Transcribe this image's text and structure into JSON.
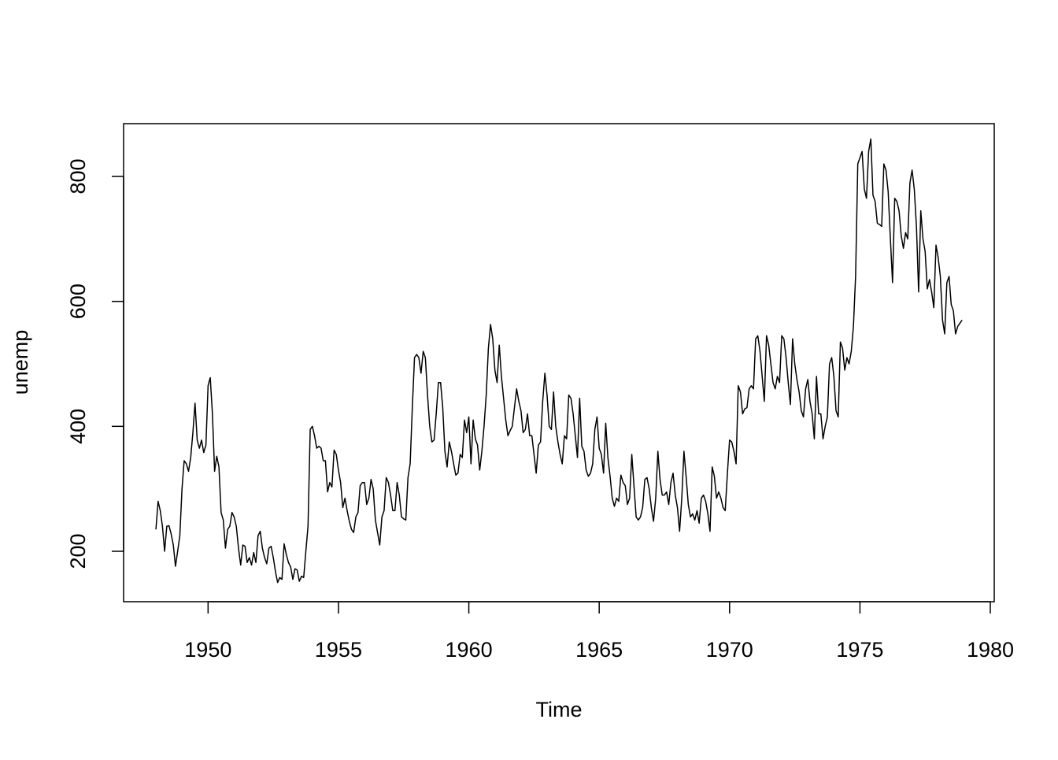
{
  "chart_data": {
    "type": "line",
    "xlabel": "Time",
    "ylabel": "unemp",
    "color": "#000000",
    "x": [
      1948,
      1948.083,
      1948.167,
      1948.25,
      1948.333,
      1948.417,
      1948.5,
      1948.583,
      1948.667,
      1948.75,
      1948.833,
      1948.917,
      1949,
      1949.083,
      1949.167,
      1949.25,
      1949.333,
      1949.417,
      1949.5,
      1949.583,
      1949.667,
      1949.75,
      1949.833,
      1949.917,
      1950,
      1950.083,
      1950.167,
      1950.25,
      1950.333,
      1950.417,
      1950.5,
      1950.583,
      1950.667,
      1950.75,
      1950.833,
      1950.917,
      1951,
      1951.083,
      1951.167,
      1951.25,
      1951.333,
      1951.417,
      1951.5,
      1951.583,
      1951.667,
      1951.75,
      1951.833,
      1951.917,
      1952,
      1952.083,
      1952.167,
      1952.25,
      1952.333,
      1952.417,
      1952.5,
      1952.583,
      1952.667,
      1952.75,
      1952.833,
      1952.917,
      1953,
      1953.083,
      1953.167,
      1953.25,
      1953.333,
      1953.417,
      1953.5,
      1953.583,
      1953.667,
      1953.75,
      1953.833,
      1953.917,
      1954,
      1954.083,
      1954.167,
      1954.25,
      1954.333,
      1954.417,
      1954.5,
      1954.583,
      1954.667,
      1954.75,
      1954.833,
      1954.917,
      1955,
      1955.083,
      1955.167,
      1955.25,
      1955.333,
      1955.417,
      1955.5,
      1955.583,
      1955.667,
      1955.75,
      1955.833,
      1955.917,
      1956,
      1956.083,
      1956.167,
      1956.25,
      1956.333,
      1956.417,
      1956.5,
      1956.583,
      1956.667,
      1956.75,
      1956.833,
      1956.917,
      1957,
      1957.083,
      1957.167,
      1957.25,
      1957.333,
      1957.417,
      1957.5,
      1957.583,
      1957.667,
      1957.75,
      1957.833,
      1957.917,
      1958,
      1958.083,
      1958.167,
      1958.25,
      1958.333,
      1958.417,
      1958.5,
      1958.583,
      1958.667,
      1958.75,
      1958.833,
      1958.917,
      1959,
      1959.083,
      1959.167,
      1959.25,
      1959.333,
      1959.417,
      1959.5,
      1959.583,
      1959.667,
      1959.75,
      1959.833,
      1959.917,
      1960,
      1960.083,
      1960.167,
      1960.25,
      1960.333,
      1960.417,
      1960.5,
      1960.583,
      1960.667,
      1960.75,
      1960.833,
      1960.917,
      1961,
      1961.083,
      1961.167,
      1961.25,
      1961.333,
      1961.417,
      1961.5,
      1961.583,
      1961.667,
      1961.75,
      1961.833,
      1961.917,
      1962,
      1962.083,
      1962.167,
      1962.25,
      1962.333,
      1962.417,
      1962.5,
      1962.583,
      1962.667,
      1962.75,
      1962.833,
      1962.917,
      1963,
      1963.083,
      1963.167,
      1963.25,
      1963.333,
      1963.417,
      1963.5,
      1963.583,
      1963.667,
      1963.75,
      1963.833,
      1963.917,
      1964,
      1964.083,
      1964.167,
      1964.25,
      1964.333,
      1964.417,
      1964.5,
      1964.583,
      1964.667,
      1964.75,
      1964.833,
      1964.917,
      1965,
      1965.083,
      1965.167,
      1965.25,
      1965.333,
      1965.417,
      1965.5,
      1965.583,
      1965.667,
      1965.75,
      1965.833,
      1965.917,
      1966,
      1966.083,
      1966.167,
      1966.25,
      1966.333,
      1966.417,
      1966.5,
      1966.583,
      1966.667,
      1966.75,
      1966.833,
      1966.917,
      1967,
      1967.083,
      1967.167,
      1967.25,
      1967.333,
      1967.417,
      1967.5,
      1967.583,
      1967.667,
      1967.75,
      1967.833,
      1967.917,
      1968,
      1968.083,
      1968.167,
      1968.25,
      1968.333,
      1968.417,
      1968.5,
      1968.583,
      1968.667,
      1968.75,
      1968.833,
      1968.917,
      1969,
      1969.083,
      1969.167,
      1969.25,
      1969.333,
      1969.417,
      1969.5,
      1969.583,
      1969.667,
      1969.75,
      1969.833,
      1969.917,
      1970,
      1970.083,
      1970.167,
      1970.25,
      1970.333,
      1970.417,
      1970.5,
      1970.583,
      1970.667,
      1970.75,
      1970.833,
      1970.917,
      1971,
      1971.083,
      1971.167,
      1971.25,
      1971.333,
      1971.417,
      1971.5,
      1971.583,
      1971.667,
      1971.75,
      1971.833,
      1971.917,
      1972,
      1972.083,
      1972.167,
      1972.25,
      1972.333,
      1972.417,
      1972.5,
      1972.583,
      1972.667,
      1972.75,
      1972.833,
      1972.917,
      1973,
      1973.083,
      1973.167,
      1973.25,
      1973.333,
      1973.417,
      1973.5,
      1973.583,
      1973.667,
      1973.75,
      1973.833,
      1973.917,
      1974,
      1974.083,
      1974.167,
      1974.25,
      1974.333,
      1974.417,
      1974.5,
      1974.583,
      1974.667,
      1974.75,
      1974.833,
      1974.917,
      1975,
      1975.083,
      1975.167,
      1975.25,
      1975.333,
      1975.417,
      1975.5,
      1975.583,
      1975.667,
      1975.75,
      1975.833,
      1975.917,
      1976,
      1976.083,
      1976.167,
      1976.25,
      1976.333,
      1976.417,
      1976.5,
      1976.583,
      1976.667,
      1976.75,
      1976.833,
      1976.917,
      1977,
      1977.083,
      1977.167,
      1977.25,
      1977.333,
      1977.417,
      1977.5,
      1977.583,
      1977.667,
      1977.75,
      1977.833,
      1977.917,
      1978,
      1978.083,
      1978.167,
      1978.25,
      1978.333,
      1978.417,
      1978.5,
      1978.583,
      1978.667,
      1978.75,
      1978.833,
      1978.917
    ],
    "values": [
      235,
      280,
      265,
      240,
      200,
      240,
      241,
      228,
      210,
      176,
      200,
      225,
      300,
      345,
      340,
      328,
      350,
      390,
      437,
      378,
      365,
      378,
      358,
      370,
      465,
      478,
      420,
      328,
      352,
      335,
      262,
      250,
      205,
      235,
      240,
      262,
      255,
      240,
      205,
      178,
      210,
      208,
      182,
      190,
      178,
      198,
      182,
      225,
      232,
      205,
      190,
      180,
      205,
      208,
      190,
      168,
      150,
      158,
      155,
      212,
      195,
      182,
      175,
      155,
      172,
      170,
      152,
      160,
      158,
      200,
      240,
      395,
      400,
      385,
      365,
      368,
      365,
      345,
      345,
      295,
      310,
      303,
      362,
      355,
      330,
      310,
      270,
      285,
      265,
      248,
      235,
      230,
      255,
      262,
      305,
      310,
      310,
      275,
      285,
      315,
      300,
      250,
      230,
      210,
      255,
      265,
      318,
      310,
      290,
      265,
      265,
      310,
      290,
      255,
      252,
      250,
      318,
      340,
      430,
      510,
      515,
      510,
      485,
      520,
      510,
      450,
      400,
      375,
      378,
      420,
      470,
      470,
      430,
      360,
      335,
      375,
      360,
      340,
      322,
      325,
      355,
      350,
      410,
      390,
      415,
      340,
      410,
      380,
      370,
      330,
      360,
      400,
      450,
      525,
      563,
      540,
      490,
      470,
      530,
      480,
      445,
      410,
      385,
      393,
      400,
      430,
      460,
      440,
      425,
      390,
      395,
      420,
      385,
      385,
      355,
      325,
      370,
      375,
      440,
      485,
      450,
      400,
      395,
      455,
      400,
      375,
      355,
      340,
      385,
      380,
      450,
      445,
      420,
      385,
      350,
      445,
      368,
      360,
      330,
      320,
      325,
      340,
      395,
      415,
      365,
      355,
      325,
      405,
      350,
      320,
      285,
      272,
      285,
      280,
      322,
      310,
      305,
      275,
      285,
      355,
      305,
      255,
      250,
      255,
      270,
      315,
      318,
      300,
      270,
      248,
      285,
      360,
      315,
      290,
      290,
      295,
      275,
      310,
      325,
      290,
      270,
      232,
      285,
      360,
      320,
      275,
      255,
      260,
      250,
      265,
      245,
      285,
      290,
      280,
      260,
      232,
      335,
      320,
      285,
      295,
      285,
      270,
      265,
      325,
      378,
      375,
      360,
      340,
      465,
      455,
      420,
      428,
      430,
      460,
      465,
      460,
      540,
      545,
      520,
      480,
      440,
      545,
      530,
      500,
      470,
      460,
      480,
      470,
      545,
      540,
      510,
      470,
      435,
      540,
      500,
      475,
      455,
      425,
      415,
      460,
      475,
      440,
      420,
      380,
      480,
      420,
      420,
      380,
      400,
      415,
      500,
      510,
      480,
      425,
      415,
      535,
      525,
      490,
      510,
      500,
      520,
      560,
      640,
      820,
      830,
      840,
      780,
      765,
      840,
      860,
      770,
      760,
      725,
      723,
      720,
      820,
      810,
      775,
      700,
      630,
      765,
      760,
      745,
      705,
      685,
      710,
      700,
      790,
      810,
      780,
      720,
      615,
      745,
      700,
      680,
      620,
      635,
      615,
      590,
      690,
      670,
      640,
      570,
      548,
      630,
      640,
      595,
      585,
      548,
      560,
      565,
      570
    ],
    "xlim": [
      1946.76,
      1980.15
    ],
    "ylim": [
      119.3,
      884.5
    ],
    "xticks": [
      1950,
      1955,
      1960,
      1965,
      1970,
      1975,
      1980
    ],
    "yticks": [
      200,
      400,
      600,
      800
    ]
  }
}
